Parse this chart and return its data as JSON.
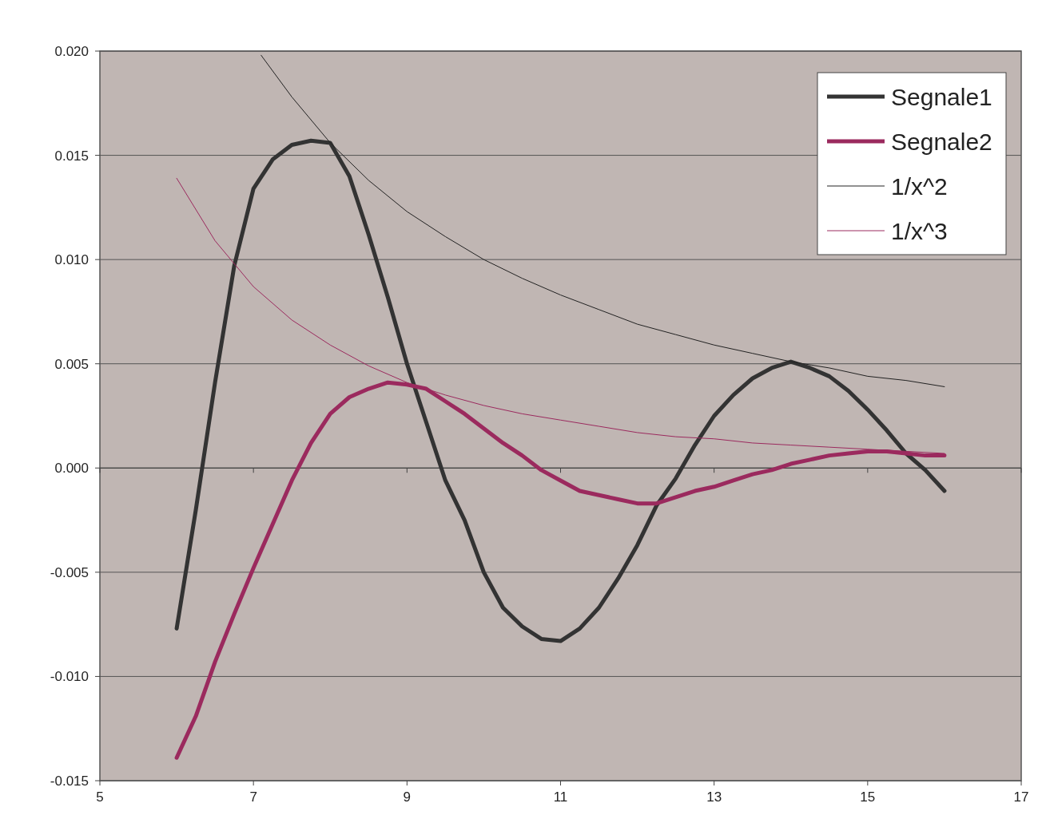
{
  "chart_data": {
    "type": "line",
    "x": [
      6,
      6.25,
      6.5,
      6.75,
      7,
      7.25,
      7.5,
      7.75,
      8,
      8.25,
      8.5,
      8.75,
      9,
      9.25,
      9.5,
      9.75,
      10,
      10.25,
      10.5,
      10.75,
      11,
      11.25,
      11.5,
      11.75,
      12,
      12.25,
      12.5,
      12.75,
      13,
      13.25,
      13.5,
      13.75,
      14,
      14.25,
      14.5,
      14.75,
      15,
      15.25,
      15.5,
      15.75,
      16
    ],
    "series": [
      {
        "name": "Segnale1",
        "color": "#333333",
        "values": [
          -0.0077,
          -0.002,
          0.0041,
          0.0097,
          0.0134,
          0.0148,
          0.0155,
          0.0157,
          0.0156,
          0.014,
          0.0112,
          0.0082,
          0.005,
          0.0022,
          -0.0006,
          -0.0025,
          -0.005,
          -0.0067,
          -0.0076,
          -0.0082,
          -0.0083,
          -0.0077,
          -0.0067,
          -0.0053,
          -0.0037,
          -0.0018,
          -0.0005,
          0.0011,
          0.0025,
          0.0035,
          0.0043,
          0.0048,
          0.0051,
          0.0048,
          0.0044,
          0.0037,
          0.0028,
          0.0018,
          0.0007,
          -0.0001,
          -0.0011
        ]
      },
      {
        "name": "Segnale2",
        "color": "#9b2a5e",
        "values": [
          -0.0139,
          -0.0119,
          -0.0093,
          -0.007,
          -0.0048,
          -0.0027,
          -0.0006,
          0.0012,
          0.0026,
          0.0034,
          0.0038,
          0.0041,
          0.004,
          0.0038,
          0.0032,
          0.0026,
          0.0019,
          0.0012,
          0.0006,
          -0.0001,
          -0.0006,
          -0.0011,
          -0.0013,
          -0.0015,
          -0.0017,
          -0.0017,
          -0.0014,
          -0.0011,
          -0.0009,
          -0.0006,
          -0.0003,
          -0.0001,
          0.0002,
          0.0004,
          0.0006,
          0.0007,
          0.0008,
          0.0008,
          0.0007,
          0.0006,
          0.0006
        ]
      },
      {
        "name": "1/x^2",
        "color": "#222222",
        "x": [
          7.1,
          7.5,
          8,
          8.5,
          9,
          9.5,
          10,
          10.5,
          11,
          11.5,
          12,
          12.5,
          13,
          13.5,
          14,
          14.5,
          15,
          15.5,
          16
        ],
        "values": [
          0.0198,
          0.0178,
          0.0156,
          0.0138,
          0.0123,
          0.0111,
          0.01,
          0.0091,
          0.0083,
          0.0076,
          0.0069,
          0.0064,
          0.0059,
          0.0055,
          0.0051,
          0.0048,
          0.0044,
          0.0042,
          0.0039
        ]
      },
      {
        "name": "1/x^3",
        "color": "#9b2a5e",
        "x": [
          6,
          6.5,
          7,
          7.5,
          8,
          8.5,
          9,
          9.5,
          10,
          10.5,
          11,
          11.5,
          12,
          12.5,
          13,
          13.5,
          14,
          14.5,
          15,
          15.5,
          16
        ],
        "values": [
          0.0139,
          0.0109,
          0.0087,
          0.0071,
          0.0059,
          0.0049,
          0.0041,
          0.0035,
          0.003,
          0.0026,
          0.0023,
          0.002,
          0.0017,
          0.0015,
          0.0014,
          0.0012,
          0.0011,
          0.001,
          0.0009,
          0.0008,
          0.0007
        ]
      }
    ],
    "xlim": [
      5,
      17
    ],
    "xticks": [
      5,
      7,
      9,
      11,
      13,
      15,
      17
    ],
    "ylim": [
      -0.015,
      0.02
    ],
    "yticks": [
      {
        "value": -0.015,
        "label": "-0.015"
      },
      {
        "value": -0.01,
        "label": "-0.010"
      },
      {
        "value": -0.005,
        "label": "-0.005"
      },
      {
        "value": 0,
        "label": "0.000"
      },
      {
        "value": 0.005,
        "label": "0.005"
      },
      {
        "value": 0.01,
        "label": "0.010"
      },
      {
        "value": 0.015,
        "label": "0.015"
      },
      {
        "value": 0.02,
        "label": "0.020"
      }
    ],
    "grid": "y",
    "legend": "top right",
    "marker": "none"
  }
}
